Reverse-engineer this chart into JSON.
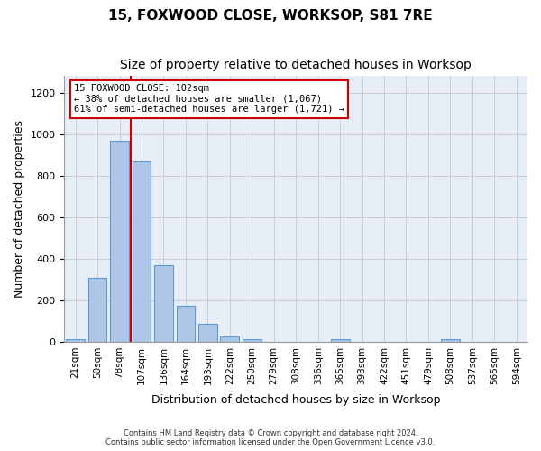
{
  "title": "15, FOXWOOD CLOSE, WORKSOP, S81 7RE",
  "subtitle": "Size of property relative to detached houses in Worksop",
  "xlabel": "Distribution of detached houses by size in Worksop",
  "ylabel": "Number of detached properties",
  "bin_labels": [
    "21sqm",
    "50sqm",
    "78sqm",
    "107sqm",
    "136sqm",
    "164sqm",
    "193sqm",
    "222sqm",
    "250sqm",
    "279sqm",
    "308sqm",
    "336sqm",
    "365sqm",
    "393sqm",
    "422sqm",
    "451sqm",
    "479sqm",
    "508sqm",
    "537sqm",
    "565sqm",
    "594sqm"
  ],
  "bar_values": [
    13,
    310,
    970,
    870,
    370,
    175,
    85,
    27,
    13,
    0,
    0,
    0,
    13,
    0,
    0,
    0,
    0,
    13,
    0,
    0,
    0
  ],
  "bar_color": "#aec6e8",
  "bar_edge_color": "#5b9bd5",
  "vline_x": 2.5,
  "vline_color": "#cc0000",
  "annotation_text": "15 FOXWOOD CLOSE: 102sqm\n← 38% of detached houses are smaller (1,067)\n61% of semi-detached houses are larger (1,721) →",
  "annotation_box_color": "#cc0000",
  "ylim": [
    0,
    1280
  ],
  "yticks": [
    0,
    200,
    400,
    600,
    800,
    1000,
    1200
  ],
  "grid_color": "#cccccc",
  "background_color": "#e8eef7",
  "footer_text": "Contains HM Land Registry data © Crown copyright and database right 2024.\nContains public sector information licensed under the Open Government Licence v3.0.",
  "title_fontsize": 11,
  "subtitle_fontsize": 10,
  "ylabel_fontsize": 9,
  "xlabel_fontsize": 9
}
